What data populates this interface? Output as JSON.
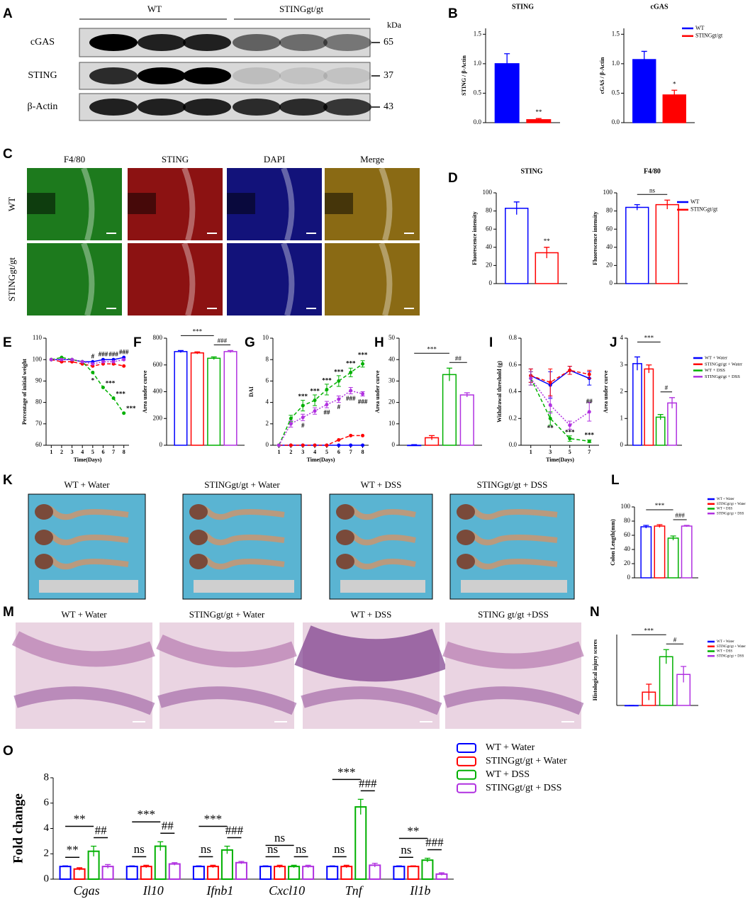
{
  "figure": {
    "panel_labels": [
      "A",
      "B",
      "C",
      "D",
      "E",
      "F",
      "G",
      "H",
      "I",
      "J",
      "K",
      "L",
      "M",
      "N",
      "O"
    ],
    "blot": {
      "groups": [
        "WT",
        "STINGgt/gt"
      ],
      "unit": "kDa",
      "proteins": [
        "cGAS",
        "STING",
        "β-Actin"
      ],
      "sizes": [
        65,
        37,
        43
      ]
    },
    "if_images": {
      "channels": [
        "F4/80",
        "STING",
        "DAPI",
        "Merge"
      ],
      "rows": [
        "WT",
        "STINGgt/gt"
      ]
    },
    "colon_photos": {
      "groups": [
        "WT + Water",
        "STINGgt/gt + Water",
        "WT + DSS",
        "STINGgt/gt + DSS"
      ]
    },
    "histology": {
      "groups": [
        "WT + Water",
        "STINGgt/gt + Water",
        "WT + DSS",
        "STING gt/gt +DSS"
      ]
    }
  },
  "chart_data": [
    {
      "type": "bar",
      "title": "STING",
      "ylabel": "STING / β-Actin",
      "ylim": [
        0,
        1.6
      ],
      "yticks": [
        {
          "value": 0,
          "label": "0.0"
        },
        {
          "value": 0.5,
          "label": "0.5"
        },
        {
          "value": 1,
          "label": "1.0"
        },
        {
          "value": 1.5,
          "label": "1.5"
        }
      ],
      "bar_style": "filled",
      "series": [
        {
          "color": "#0000ff",
          "values": [
            1.0
          ],
          "errors": [
            0.17
          ]
        },
        {
          "color": "#ff0000",
          "values": [
            0.05
          ],
          "errors": [
            0.02
          ]
        }
      ],
      "annotations": [
        "**"
      ]
    },
    {
      "type": "bar",
      "title": "cGAS",
      "ylabel": "cGAS / β-Actin",
      "ylim": [
        0,
        1.6
      ],
      "yticks": [
        {
          "value": 0,
          "label": "0.0"
        },
        {
          "value": 0.5,
          "label": "0.5"
        },
        {
          "value": 1,
          "label": "1.0"
        },
        {
          "value": 1.5,
          "label": "1.5"
        }
      ],
      "bar_style": "filled",
      "series": [
        {
          "name": "WT",
          "color": "#0000ff",
          "values": [
            1.07
          ],
          "errors": [
            0.14
          ]
        },
        {
          "name": "STINGgt/gt",
          "color": "#ff0000",
          "values": [
            0.47
          ],
          "errors": [
            0.08
          ]
        }
      ],
      "annotations": [
        "*"
      ]
    },
    {
      "type": "bar",
      "title": "STING",
      "ylabel": "Fluorescence intensity",
      "ylim": [
        0,
        100
      ],
      "yticks": [
        0,
        20,
        40,
        60,
        80,
        100
      ],
      "bar_style": "outline",
      "series": [
        {
          "color": "#0000ff",
          "values": [
            83
          ],
          "errors": [
            7
          ]
        },
        {
          "color": "#ff0000",
          "values": [
            34
          ],
          "errors": [
            6
          ]
        }
      ],
      "annotations": [
        "**"
      ]
    },
    {
      "type": "bar",
      "title": "F4/80",
      "ylabel": "Fluorescence intensity",
      "ylim": [
        0,
        100
      ],
      "yticks": [
        0,
        20,
        40,
        60,
        80,
        100
      ],
      "bar_style": "outline",
      "series": [
        {
          "name": "WT",
          "color": "#0000ff",
          "values": [
            84
          ],
          "errors": [
            3
          ]
        },
        {
          "name": "STINGgt/gt",
          "color": "#ff0000",
          "values": [
            87
          ],
          "errors": [
            5
          ]
        }
      ],
      "annotations": [
        "ns"
      ]
    },
    {
      "type": "line",
      "ylabel": "Percentage of initial weight",
      "xlabel": "Time(Days)",
      "x": [
        1,
        2,
        3,
        4,
        5,
        6,
        7,
        8
      ],
      "xlim": [
        0.5,
        8.5
      ],
      "xticks": [
        1,
        2,
        3,
        4,
        5,
        6,
        7,
        8
      ],
      "ylim": [
        60,
        110
      ],
      "yticks": [
        60,
        70,
        80,
        90,
        100,
        110
      ],
      "series": [
        {
          "color": "#0000ff",
          "line_style": "solid",
          "values": [
            100,
            100,
            100,
            99,
            99,
            100,
            100,
            101
          ]
        },
        {
          "color": "#ff0000",
          "line_style": "dashed",
          "values": [
            100,
            99,
            99,
            98,
            97,
            98,
            98,
            97
          ]
        },
        {
          "color": "#00b000",
          "line_style": "dashed",
          "values": [
            100,
            101,
            100,
            99,
            94,
            87,
            82,
            75
          ]
        },
        {
          "color": "#b030e0",
          "line_style": "dotted",
          "values": [
            100,
            100,
            100,
            99,
            98,
            99,
            99,
            100
          ]
        }
      ],
      "annotations": [
        "#",
        "###",
        "###",
        "###",
        "*",
        "***",
        "***",
        "***"
      ]
    },
    {
      "type": "bar",
      "ylabel": "Area under curve",
      "ylim": [
        0,
        800
      ],
      "yticks": [
        0,
        200,
        400,
        600,
        800
      ],
      "bar_style": "outline",
      "series": [
        {
          "color": "#0000ff",
          "values": [
            700
          ],
          "errors": [
            8
          ]
        },
        {
          "color": "#ff0000",
          "values": [
            690
          ],
          "errors": [
            8
          ]
        },
        {
          "color": "#00b000",
          "values": [
            650
          ],
          "errors": [
            10
          ]
        },
        {
          "color": "#b030e0",
          "values": [
            700
          ],
          "errors": [
            8
          ]
        }
      ],
      "annotations": [
        "***",
        "###"
      ]
    },
    {
      "type": "line",
      "ylabel": "DAI",
      "xlabel": "Time(Days)",
      "x": [
        1,
        2,
        3,
        4,
        5,
        6,
        7,
        8
      ],
      "xlim": [
        0.5,
        8.5
      ],
      "xticks": [
        1,
        2,
        3,
        4,
        5,
        6,
        7,
        8
      ],
      "ylim": [
        0,
        10
      ],
      "yticks": [
        0,
        2,
        4,
        6,
        8,
        10
      ],
      "series": [
        {
          "color": "#0000ff",
          "line_style": "solid",
          "values": [
            0,
            0,
            0,
            0,
            0,
            0,
            0,
            0
          ]
        },
        {
          "color": "#ff0000",
          "line_style": "dashed",
          "values": [
            0,
            0,
            0,
            0,
            0,
            0.5,
            0.9,
            0.9
          ]
        },
        {
          "color": "#00b000",
          "line_style": "dashed",
          "values": [
            0,
            2.5,
            3.7,
            4.2,
            5.2,
            6,
            6.8,
            7.6
          ],
          "errors": [
            0,
            0.3,
            0.5,
            0.5,
            0.5,
            0.5,
            0.4,
            0.3
          ]
        },
        {
          "color": "#b030e0",
          "line_style": "dotted",
          "values": [
            0,
            2,
            2.6,
            3.2,
            3.8,
            4.3,
            5.1,
            4.8
          ],
          "errors": [
            0,
            0.3,
            0.3,
            0.3,
            0.3,
            0.3,
            0.3,
            0.2
          ]
        }
      ],
      "annotations": [
        "***",
        "***",
        "***",
        "***",
        "***",
        "***",
        "#",
        "##",
        "#",
        "###",
        "###"
      ]
    },
    {
      "type": "bar",
      "ylabel": "Area under curve",
      "ylim": [
        0,
        50
      ],
      "yticks": [
        0,
        10,
        20,
        30,
        40,
        50
      ],
      "bar_style": "outline",
      "series": [
        {
          "color": "#0000ff",
          "values": [
            0
          ],
          "errors": [
            0.3
          ]
        },
        {
          "color": "#ff0000",
          "values": [
            3.5
          ],
          "errors": [
            1
          ]
        },
        {
          "color": "#00b000",
          "values": [
            33
          ],
          "errors": [
            3
          ]
        },
        {
          "color": "#b030e0",
          "values": [
            23.5
          ],
          "errors": [
            1
          ]
        }
      ],
      "annotations": [
        "***",
        "##"
      ]
    },
    {
      "type": "line",
      "ylabel": "Withdrawal threshold (g)",
      "xlabel": "Time(Days)",
      "x": [
        1,
        3,
        5,
        7
      ],
      "xlim": [
        0,
        8
      ],
      "xticks": [
        1,
        3,
        5,
        7
      ],
      "ylim": [
        0,
        0.8
      ],
      "yticks": [
        {
          "value": 0,
          "label": "0.0"
        },
        {
          "value": 0.2,
          "label": "0.2"
        },
        {
          "value": 0.4,
          "label": "0.4"
        },
        {
          "value": 0.6,
          "label": "0.6"
        },
        {
          "value": 0.8,
          "label": "0.8"
        }
      ],
      "series": [
        {
          "color": "#0000ff",
          "line_style": "solid",
          "values": [
            0.52,
            0.45,
            0.56,
            0.5
          ],
          "errors": [
            0.05,
            0.1,
            0.03,
            0.05
          ]
        },
        {
          "color": "#ff0000",
          "line_style": "dashed",
          "values": [
            0.52,
            0.47,
            0.56,
            0.53
          ],
          "errors": [
            0.05,
            0.1,
            0.03,
            0.03
          ]
        },
        {
          "color": "#00b000",
          "line_style": "dashed",
          "values": [
            0.5,
            0.2,
            0.05,
            0.03
          ],
          "errors": [
            0.05,
            0.05,
            0.02,
            0.01
          ]
        },
        {
          "color": "#b030e0",
          "line_style": "dotted",
          "values": [
            0.5,
            0.3,
            0.15,
            0.25
          ],
          "errors": [
            0.05,
            0.06,
            0.03,
            0.07
          ]
        }
      ],
      "annotations": [
        "**",
        "***",
        "***",
        "##"
      ]
    },
    {
      "type": "bar",
      "ylabel": "Area under curve",
      "ylim": [
        0,
        4
      ],
      "yticks": [
        0,
        1,
        2,
        3,
        4
      ],
      "bar_style": "outline",
      "series": [
        {
          "name": "WT + Water",
          "color": "#0000ff",
          "values": [
            3.05
          ],
          "errors": [
            0.25
          ]
        },
        {
          "name": "STINGgt/gt + Water",
          "color": "#ff0000",
          "values": [
            2.85
          ],
          "errors": [
            0.15
          ]
        },
        {
          "name": "WT + DSS",
          "color": "#00b000",
          "values": [
            1.05
          ],
          "errors": [
            0.1
          ]
        },
        {
          "name": "STINGgt/gt + DSS",
          "color": "#b030e0",
          "values": [
            1.58
          ],
          "errors": [
            0.2
          ]
        }
      ],
      "annotations": [
        "***",
        "#"
      ]
    },
    {
      "type": "bar",
      "ylabel": "Colon Length(mm)",
      "ylim": [
        0,
        100
      ],
      "yticks": [
        0,
        20,
        40,
        60,
        80,
        100
      ],
      "bar_style": "outline",
      "series": [
        {
          "name": "WT + Water",
          "color": "#0000ff",
          "values": [
            72
          ],
          "errors": [
            2
          ]
        },
        {
          "name": "STINGgt/gt + Water",
          "color": "#ff0000",
          "values": [
            73
          ],
          "errors": [
            2
          ]
        },
        {
          "name": "WT + DSS",
          "color": "#00b000",
          "values": [
            56
          ],
          "errors": [
            3
          ]
        },
        {
          "name": "STINGgt/gt + DSS",
          "color": "#b030e0",
          "values": [
            73
          ],
          "errors": [
            1
          ]
        }
      ],
      "annotations": [
        "***",
        "###"
      ]
    },
    {
      "type": "bar",
      "ylabel": "Histological injury scores",
      "ylim": [
        0,
        4
      ],
      "bar_style": "outline",
      "series": [
        {
          "name": "WT + Water",
          "color": "#0000ff",
          "values": [
            0
          ],
          "errors": [
            0
          ]
        },
        {
          "name": "STINGgt/gt + Water",
          "color": "#ff0000",
          "values": [
            0.75
          ],
          "errors": [
            0.45
          ]
        },
        {
          "name": "WT + DSS",
          "color": "#00b000",
          "values": [
            2.75
          ],
          "errors": [
            0.4
          ]
        },
        {
          "name": "STINGgt/gt + DSS",
          "color": "#b030e0",
          "values": [
            1.75
          ],
          "errors": [
            0.45
          ]
        }
      ],
      "annotations": [
        "***",
        "#"
      ]
    },
    {
      "type": "bar",
      "ylabel": "Fold change",
      "ylim": [
        0,
        8
      ],
      "yticks": [
        0,
        2,
        4,
        6,
        8
      ],
      "bar_style": "outline",
      "categories": [
        "Cgas",
        "Il10",
        "Ifnb1",
        "Cxcl10",
        "Tnf",
        "Il1b"
      ],
      "series": [
        {
          "name": "WT + Water",
          "color": "#0000ff",
          "values": [
            1,
            1,
            1,
            1,
            1,
            1
          ],
          "errors": [
            0.05,
            0.05,
            0.05,
            0.05,
            0.05,
            0.05
          ]
        },
        {
          "name": "STINGgt/gt + Water",
          "color": "#ff0000",
          "values": [
            0.8,
            1,
            1,
            1,
            1,
            1
          ],
          "errors": [
            0.1,
            0.1,
            0.1,
            0.1,
            0.1,
            0.05
          ]
        },
        {
          "name": "WT + DSS",
          "color": "#00b000",
          "values": [
            2.2,
            2.6,
            2.3,
            1,
            5.7,
            1.5
          ],
          "errors": [
            0.4,
            0.35,
            0.3,
            0.1,
            0.6,
            0.15
          ]
        },
        {
          "name": "STINGgt/gt + DSS",
          "color": "#b030e0",
          "values": [
            1,
            1.2,
            1.3,
            1,
            1.1,
            0.4
          ],
          "errors": [
            0.15,
            0.1,
            0.1,
            0.1,
            0.15,
            0.1
          ]
        }
      ],
      "annotations": [
        [
          "**",
          "**",
          "##"
        ],
        [
          "ns",
          "***",
          "##"
        ],
        [
          "ns",
          "***",
          "###"
        ],
        [
          "ns",
          "ns",
          "ns"
        ],
        [
          "ns",
          "***",
          "###"
        ],
        [
          "ns",
          "**",
          "###"
        ]
      ]
    }
  ]
}
